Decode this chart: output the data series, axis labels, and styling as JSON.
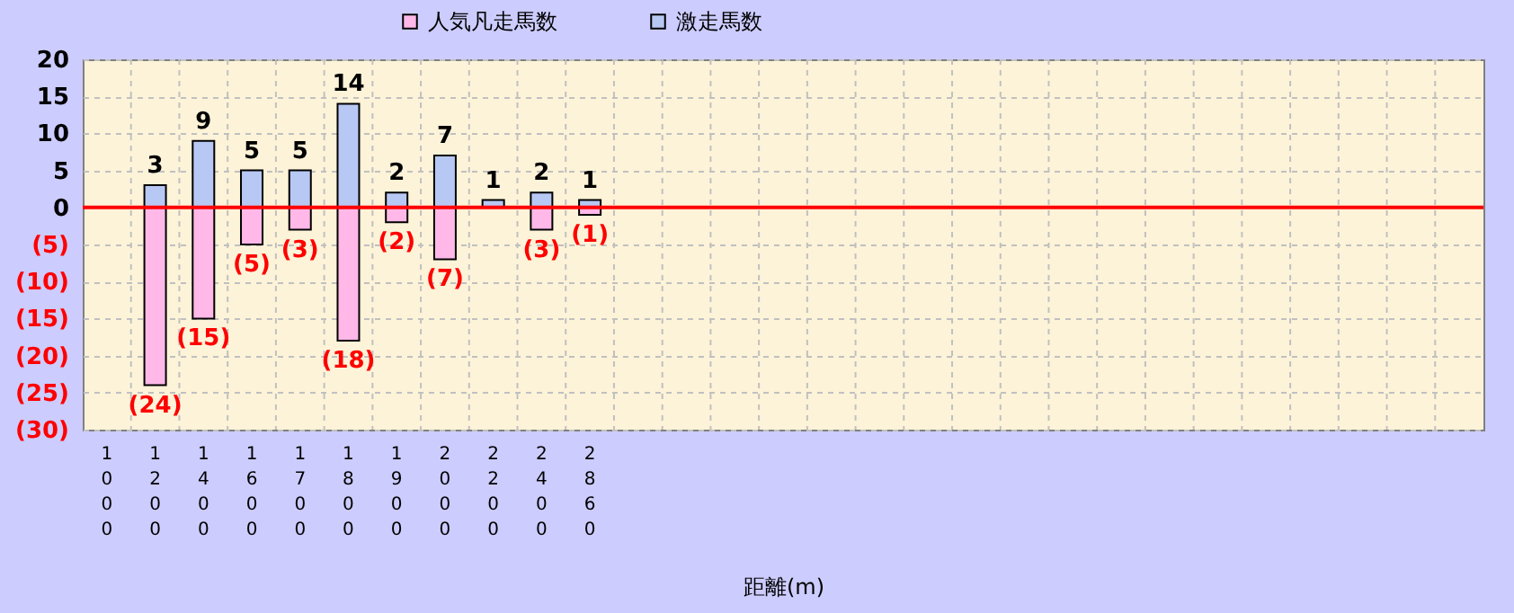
{
  "chart_data": {
    "type": "bar",
    "xlabel": "距離(m)",
    "categories": [
      "1000",
      "1200",
      "1400",
      "1600",
      "1700",
      "1800",
      "1900",
      "2000",
      "2200",
      "2400",
      "2860",
      null,
      null,
      null,
      null,
      null,
      null,
      null,
      null,
      null,
      null,
      null,
      null,
      null,
      null,
      null,
      null,
      null,
      null
    ],
    "series": [
      {
        "name": "人気凡走馬数",
        "color": "#ffb8e8",
        "values": [
          null,
          -24,
          -15,
          -5,
          -3,
          -18,
          -2,
          -7,
          null,
          -3,
          -1,
          null,
          null,
          null,
          null,
          null,
          null,
          null,
          null,
          null,
          null,
          null,
          null,
          null,
          null,
          null,
          null,
          null,
          null
        ],
        "value_labels": [
          null,
          "(24)",
          "(15)",
          "(5)",
          "(3)",
          "(18)",
          "(2)",
          "(7)",
          null,
          "(3)",
          "(1)",
          null,
          null,
          null,
          null,
          null,
          null,
          null,
          null,
          null,
          null,
          null,
          null,
          null,
          null,
          null,
          null,
          null,
          null
        ]
      },
      {
        "name": "激走馬数",
        "color": "#b8c8f4",
        "values": [
          null,
          3,
          9,
          5,
          5,
          14,
          2,
          7,
          1,
          2,
          1,
          null,
          null,
          null,
          null,
          null,
          null,
          null,
          null,
          null,
          null,
          null,
          null,
          null,
          null,
          null,
          null,
          null,
          null
        ],
        "value_labels": [
          null,
          "3",
          "9",
          "5",
          "5",
          "14",
          "2",
          "7",
          "1",
          "2",
          "1",
          null,
          null,
          null,
          null,
          null,
          null,
          null,
          null,
          null,
          null,
          null,
          null,
          null,
          null,
          null,
          null,
          null,
          null
        ]
      }
    ],
    "ylim": [
      -30,
      20
    ],
    "yticks": [
      {
        "value": -30,
        "label": "(30)"
      },
      {
        "value": -25,
        "label": "(25)"
      },
      {
        "value": -20,
        "label": "(20)"
      },
      {
        "value": -15,
        "label": "(15)"
      },
      {
        "value": -10,
        "label": "(10)"
      },
      {
        "value": -5,
        "label": "(5)"
      },
      0,
      5,
      10,
      15,
      20
    ],
    "ref_lines": [
      {
        "axis": "y",
        "value": 0,
        "color": "#ff0000"
      }
    ],
    "stacked": true,
    "grid": true,
    "legend": "top"
  }
}
